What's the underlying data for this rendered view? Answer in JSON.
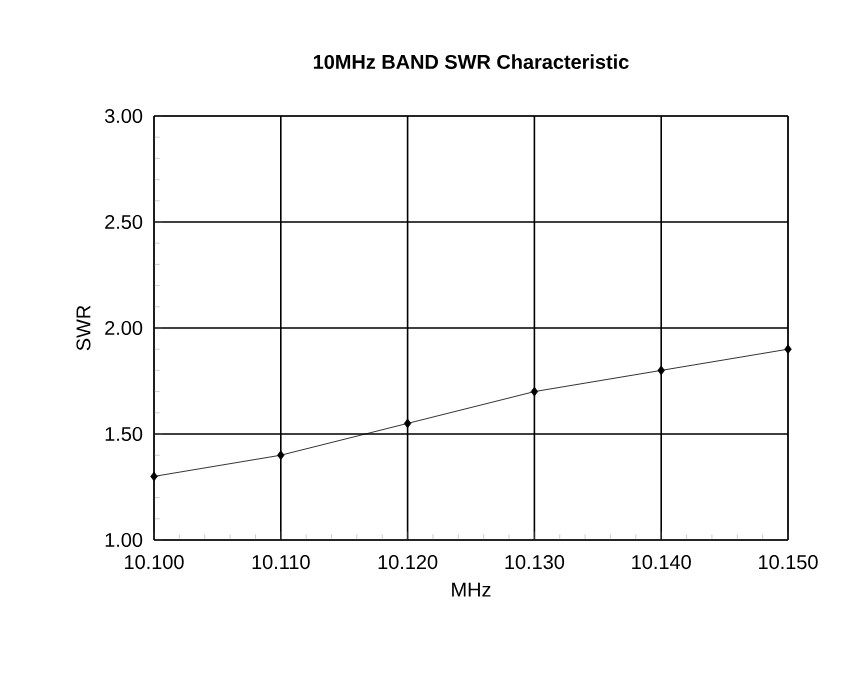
{
  "chart_data": {
    "type": "line",
    "title": "10MHz BAND SWR Characteristic",
    "xlabel": "MHz",
    "ylabel": "SWR",
    "x": [
      10.1,
      10.11,
      10.12,
      10.13,
      10.14,
      10.15
    ],
    "series": [
      {
        "color": "#000000",
        "values": [
          1.3,
          1.4,
          1.55,
          1.7,
          1.8,
          1.9
        ]
      }
    ],
    "xlim": [
      10.1,
      10.15
    ],
    "ylim": [
      1,
      3
    ],
    "xticks": [
      {
        "value": 10.1,
        "label": "10.100"
      },
      {
        "value": 10.11,
        "label": "10.110"
      },
      {
        "value": 10.12,
        "label": "10.120"
      },
      {
        "value": 10.13,
        "label": "10.130"
      },
      {
        "value": 10.14,
        "label": "10.140"
      },
      {
        "value": 10.15,
        "label": "10.150"
      }
    ],
    "yticks": [
      {
        "value": 1,
        "label": "1.00"
      },
      {
        "value": 1.5,
        "label": "1.50"
      },
      {
        "value": 2,
        "label": "2.00"
      },
      {
        "value": 2.5,
        "label": "2.50"
      },
      {
        "value": 3,
        "label": "3.00"
      }
    ],
    "grid": true,
    "marker": "diamond",
    "line_style": "solid"
  }
}
